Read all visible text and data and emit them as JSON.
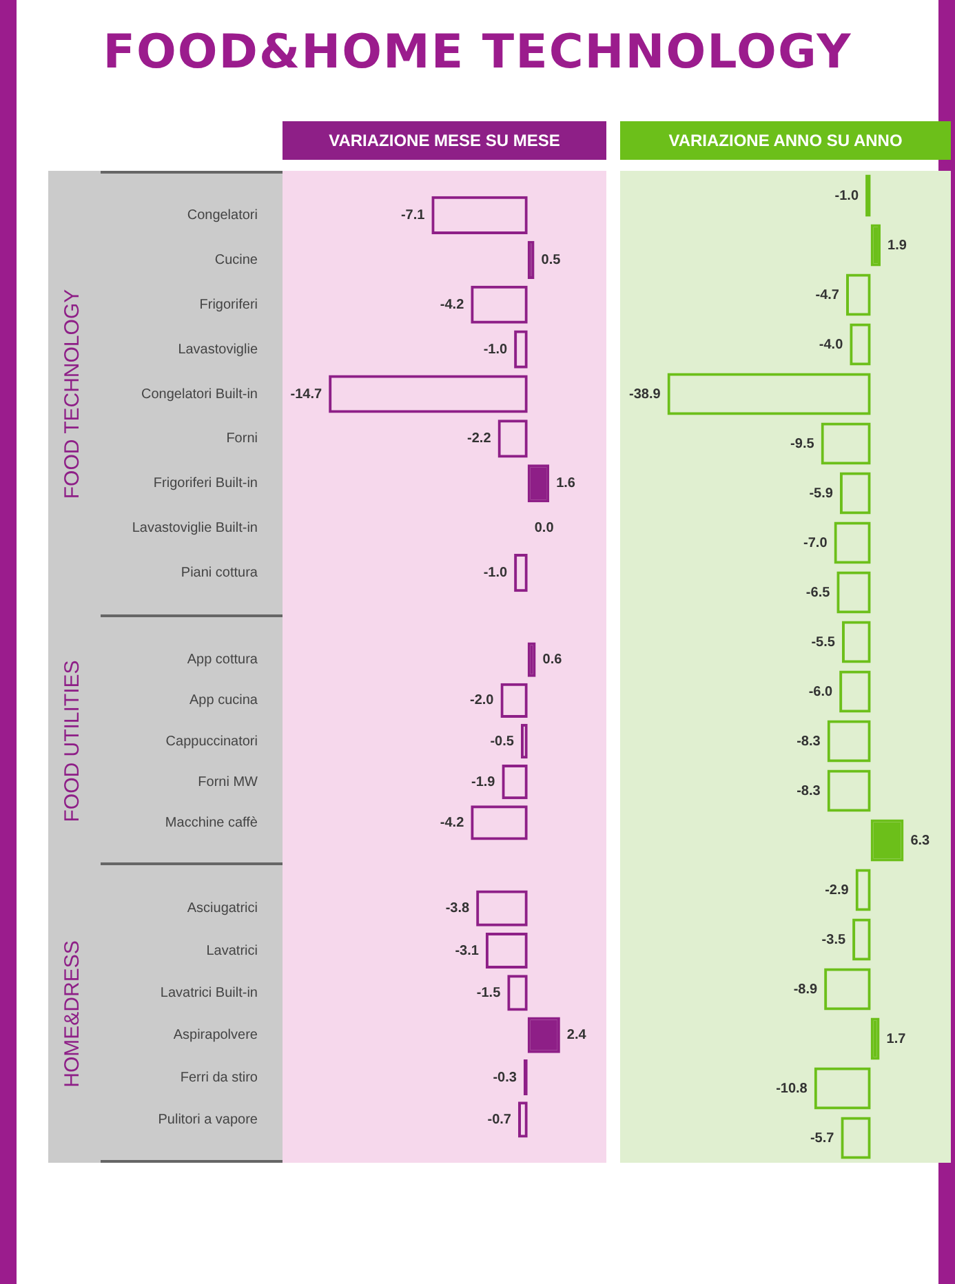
{
  "chart_data": [
    {
      "type": "bar",
      "orientation": "horizontal",
      "title": "FOOD&HOME TECHNOLOGY",
      "subtitle": "VARIAZIONE MESE SU MESE",
      "ylabel": "FOOD TECHNOLOGY",
      "tick_labels": "y",
      "categories": [
        "Congelatori",
        "Cucine",
        "Frigoriferi",
        "Lavastoviglie",
        "Congelatori Built-in",
        "Forni",
        "Frigoriferi Built-in",
        "Lavastoviglie Built-in",
        "Piani cottura"
      ],
      "series": [
        {
          "color": "#8e1f87",
          "values": [
            -7.1,
            0.5,
            -4.2,
            -1.0,
            -14.7,
            -2.2,
            1.6,
            0.0,
            -1.0
          ],
          "value_labels": [
            "-7.1",
            "0.5",
            "-4.2",
            "-1.0",
            "-14.7",
            "-2.2",
            "1.6",
            "0.0",
            "-1.0"
          ]
        }
      ]
    },
    {
      "type": "bar",
      "orientation": "horizontal",
      "subtitle": "VARIAZIONE ANNO SU ANNO",
      "categories": [
        null,
        null,
        null,
        null,
        null,
        null,
        null,
        null,
        null
      ],
      "series": [
        {
          "color": "#6cbf1a",
          "values": [
            -1.0,
            1.9,
            -4.7,
            -4.0,
            -38.9,
            -9.5,
            -5.9,
            -7.0,
            -6.5
          ],
          "value_labels": [
            "-1.0",
            "1.9",
            "-4.7",
            "-4.0",
            "-38.9",
            "-9.5",
            "-5.9",
            "-7.0",
            "-6.5"
          ]
        }
      ]
    },
    {
      "type": "bar",
      "orientation": "horizontal",
      "ylabel": "FOOD UTILITIES",
      "tick_labels": "y",
      "categories": [
        "App cottura",
        "App cucina",
        "Cappuccinatori",
        "Forni MW",
        "Macchine caffè"
      ],
      "series": [
        {
          "color": "#8e1f87",
          "values": [
            0.6,
            -2.0,
            -0.5,
            -1.9,
            -4.2
          ],
          "value_labels": [
            "0.6",
            "-2.0",
            "-0.5",
            "-1.9",
            "-4.2"
          ]
        }
      ]
    },
    {
      "type": "bar",
      "orientation": "horizontal",
      "categories": [
        null,
        null,
        null,
        null,
        null
      ],
      "series": [
        {
          "color": "#6cbf1a",
          "values": [
            -5.5,
            -6.0,
            -8.3,
            -8.3,
            6.3
          ],
          "value_labels": [
            "-5.5",
            "-6.0",
            "-8.3",
            "-8.3",
            "6.3"
          ]
        }
      ]
    },
    {
      "type": "bar",
      "orientation": "horizontal",
      "ylabel": "HOME&DRESS",
      "tick_labels": "y",
      "categories": [
        "Asciugatrici",
        "Lavatrici",
        "Lavatrici Built-in",
        "Aspirapolvere",
        "Ferri da stiro",
        "Pulitori a vapore"
      ],
      "series": [
        {
          "color": "#8e1f87",
          "values": [
            -3.8,
            -3.1,
            -1.5,
            2.4,
            -0.3,
            -0.7
          ],
          "value_labels": [
            "-3.8",
            "-3.1",
            "-1.5",
            "2.4",
            "-0.3",
            "-0.7"
          ]
        }
      ]
    },
    {
      "type": "bar",
      "orientation": "horizontal",
      "categories": [
        null,
        null,
        null,
        null,
        null,
        null
      ],
      "series": [
        {
          "color": "#6cbf1a",
          "values": [
            -2.9,
            -3.5,
            -8.9,
            1.7,
            -10.8,
            -5.7
          ],
          "value_labels": [
            "-2.9",
            "-3.5",
            "-8.9",
            "1.7",
            "-10.8",
            "-5.7"
          ]
        }
      ]
    }
  ]
}
